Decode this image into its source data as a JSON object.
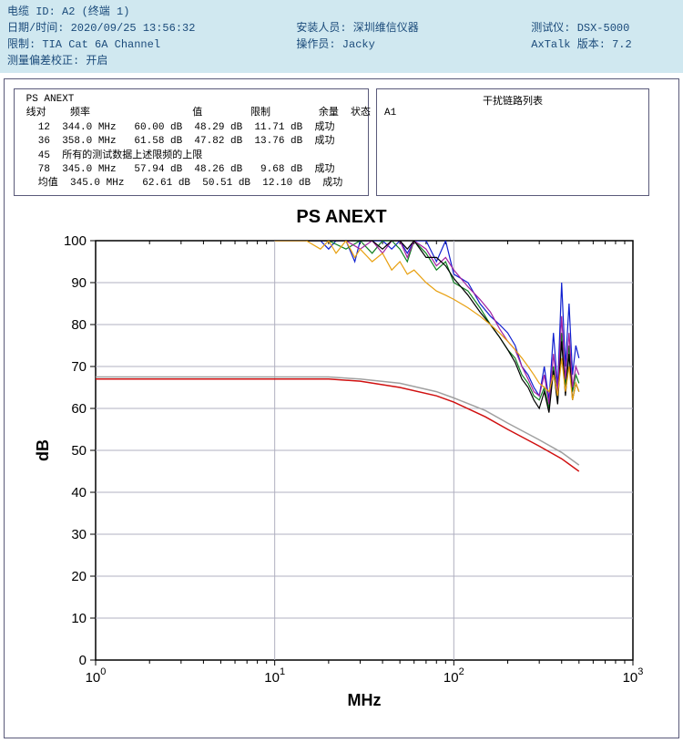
{
  "header": {
    "row1": {
      "a": "电缆 ID: A2 (终端 1)"
    },
    "row2": {
      "a": "日期/时间: 2020/09/25 13:56:32",
      "b": "安装人员: 深圳维信仪器",
      "c": "测试仪: DSX-5000"
    },
    "row3": {
      "a": "限制: TIA Cat 6A Channel",
      "b": "操作员: Jacky",
      "c": "AxTalk 版本: 7.2"
    },
    "row4": {
      "a": "测量偏差校正: 开启"
    }
  },
  "table": {
    "title": "PS ANEXT",
    "headers": [
      "线对",
      "频率",
      "值",
      "限制",
      "余量",
      "状态"
    ],
    "rows": [
      {
        "pair": "12",
        "freq": "344.0 MHz",
        "val": "60.00 dB",
        "lim": "48.29 dB",
        "margin": "11.71 dB",
        "status": "成功"
      },
      {
        "pair": "36",
        "freq": "358.0 MHz",
        "val": "61.58 dB",
        "lim": "47.82 dB",
        "margin": "13.76 dB",
        "status": "成功"
      },
      {
        "pair": "45",
        "freq": "所有的测试数据上述限频的上限",
        "val": "",
        "lim": "",
        "margin": "",
        "status": ""
      },
      {
        "pair": "78",
        "freq": "345.0 MHz",
        "val": "57.94 dB",
        "lim": "48.26 dB",
        "margin": " 9.68 dB",
        "status": "成功"
      },
      {
        "pair": "均值",
        "freq": "345.0 MHz",
        "val": "62.61 dB",
        "lim": "50.51 dB",
        "margin": "12.10 dB",
        "status": "成功"
      }
    ]
  },
  "side": {
    "title": "干扰链路列表",
    "item": "A1"
  },
  "chart": {
    "title": "PS ANEXT",
    "xlabel": "MHz",
    "ylabel": "dB",
    "x_log_min": 0,
    "x_log_max": 3,
    "y_min": 0,
    "y_max": 100,
    "y_tick_step": 10,
    "background": "#ffffff",
    "grid_color": "#b0b0c0",
    "limit_line": {
      "color": "#d01010",
      "width": 1.5,
      "points": [
        [
          1,
          67
        ],
        [
          10,
          67
        ],
        [
          20,
          67
        ],
        [
          30,
          66.5
        ],
        [
          50,
          65
        ],
        [
          80,
          63
        ],
        [
          100,
          61.5
        ],
        [
          150,
          58
        ],
        [
          200,
          55
        ],
        [
          300,
          51
        ],
        [
          400,
          48
        ],
        [
          500,
          45
        ]
      ]
    },
    "gray_line": {
      "color": "#a0a0a0",
      "width": 1.5,
      "points": [
        [
          1,
          67.5
        ],
        [
          10,
          67.5
        ],
        [
          20,
          67.5
        ],
        [
          30,
          67
        ],
        [
          50,
          66
        ],
        [
          80,
          64
        ],
        [
          100,
          62.5
        ],
        [
          150,
          59.5
        ],
        [
          200,
          56.5
        ],
        [
          300,
          52.5
        ],
        [
          400,
          49.5
        ],
        [
          500,
          46.5
        ]
      ]
    },
    "traces": [
      {
        "color": "#1020d0",
        "points": [
          [
            10,
            100
          ],
          [
            15,
            100
          ],
          [
            18,
            100
          ],
          [
            20,
            98
          ],
          [
            22,
            100
          ],
          [
            25,
            100
          ],
          [
            28,
            95
          ],
          [
            30,
            100
          ],
          [
            35,
            100
          ],
          [
            40,
            100
          ],
          [
            45,
            98
          ],
          [
            50,
            100
          ],
          [
            55,
            97
          ],
          [
            60,
            100
          ],
          [
            70,
            100
          ],
          [
            80,
            95
          ],
          [
            90,
            100
          ],
          [
            100,
            92
          ],
          [
            120,
            90
          ],
          [
            140,
            85
          ],
          [
            160,
            82
          ],
          [
            180,
            80
          ],
          [
            200,
            78
          ],
          [
            220,
            75
          ],
          [
            240,
            70
          ],
          [
            260,
            68
          ],
          [
            280,
            65
          ],
          [
            300,
            63
          ],
          [
            320,
            70
          ],
          [
            340,
            62
          ],
          [
            360,
            78
          ],
          [
            380,
            65
          ],
          [
            400,
            90
          ],
          [
            420,
            70
          ],
          [
            440,
            85
          ],
          [
            460,
            68
          ],
          [
            480,
            75
          ],
          [
            500,
            72
          ]
        ]
      },
      {
        "color": "#108020",
        "points": [
          [
            10,
            100
          ],
          [
            15,
            100
          ],
          [
            20,
            100
          ],
          [
            25,
            98
          ],
          [
            30,
            100
          ],
          [
            35,
            97
          ],
          [
            40,
            100
          ],
          [
            45,
            100
          ],
          [
            50,
            98
          ],
          [
            55,
            95
          ],
          [
            60,
            100
          ],
          [
            70,
            97
          ],
          [
            80,
            93
          ],
          [
            90,
            95
          ],
          [
            100,
            90
          ],
          [
            120,
            88
          ],
          [
            140,
            84
          ],
          [
            160,
            80
          ],
          [
            180,
            77
          ],
          [
            200,
            74
          ],
          [
            220,
            72
          ],
          [
            240,
            68
          ],
          [
            260,
            66
          ],
          [
            280,
            63
          ],
          [
            300,
            62
          ],
          [
            320,
            65
          ],
          [
            340,
            60
          ],
          [
            360,
            70
          ],
          [
            380,
            62
          ],
          [
            400,
            78
          ],
          [
            420,
            65
          ],
          [
            440,
            75
          ],
          [
            460,
            64
          ],
          [
            480,
            68
          ],
          [
            500,
            66
          ]
        ]
      },
      {
        "color": "#a020a0",
        "points": [
          [
            10,
            100
          ],
          [
            15,
            100
          ],
          [
            20,
            100
          ],
          [
            25,
            100
          ],
          [
            30,
            98
          ],
          [
            35,
            100
          ],
          [
            40,
            97
          ],
          [
            45,
            100
          ],
          [
            50,
            100
          ],
          [
            55,
            96
          ],
          [
            60,
            100
          ],
          [
            70,
            98
          ],
          [
            80,
            94
          ],
          [
            90,
            96
          ],
          [
            100,
            93
          ],
          [
            120,
            89
          ],
          [
            140,
            86
          ],
          [
            160,
            83
          ],
          [
            180,
            79
          ],
          [
            200,
            76
          ],
          [
            220,
            74
          ],
          [
            240,
            70
          ],
          [
            260,
            67
          ],
          [
            280,
            64
          ],
          [
            300,
            63
          ],
          [
            320,
            68
          ],
          [
            340,
            61
          ],
          [
            360,
            73
          ],
          [
            380,
            64
          ],
          [
            400,
            82
          ],
          [
            420,
            67
          ],
          [
            440,
            78
          ],
          [
            460,
            65
          ],
          [
            480,
            70
          ],
          [
            500,
            68
          ]
        ]
      },
      {
        "color": "#000000",
        "points": [
          [
            10,
            100
          ],
          [
            15,
            100
          ],
          [
            20,
            100
          ],
          [
            25,
            100
          ],
          [
            30,
            100
          ],
          [
            35,
            100
          ],
          [
            40,
            98
          ],
          [
            45,
            100
          ],
          [
            50,
            100
          ],
          [
            55,
            98
          ],
          [
            60,
            100
          ],
          [
            70,
            96
          ],
          [
            80,
            96
          ],
          [
            90,
            94
          ],
          [
            100,
            91
          ],
          [
            120,
            87
          ],
          [
            140,
            83
          ],
          [
            160,
            80
          ],
          [
            180,
            77
          ],
          [
            200,
            74
          ],
          [
            220,
            71
          ],
          [
            240,
            67
          ],
          [
            260,
            65
          ],
          [
            280,
            62
          ],
          [
            300,
            60
          ],
          [
            320,
            64
          ],
          [
            340,
            59
          ],
          [
            360,
            69
          ],
          [
            380,
            61
          ],
          [
            400,
            76
          ],
          [
            420,
            63
          ],
          [
            440,
            73
          ],
          [
            460,
            62
          ],
          [
            480,
            66
          ],
          [
            500,
            64
          ]
        ]
      },
      {
        "color": "#e8a010",
        "points": [
          [
            10,
            100
          ],
          [
            15,
            100
          ],
          [
            18,
            98
          ],
          [
            20,
            100
          ],
          [
            22,
            97
          ],
          [
            25,
            100
          ],
          [
            28,
            96
          ],
          [
            30,
            98
          ],
          [
            35,
            95
          ],
          [
            40,
            97
          ],
          [
            45,
            93
          ],
          [
            50,
            95
          ],
          [
            55,
            92
          ],
          [
            60,
            93
          ],
          [
            70,
            90
          ],
          [
            80,
            88
          ],
          [
            90,
            87
          ],
          [
            100,
            86
          ],
          [
            120,
            84
          ],
          [
            140,
            82
          ],
          [
            160,
            80
          ],
          [
            180,
            78
          ],
          [
            200,
            76
          ],
          [
            220,
            74
          ],
          [
            240,
            72
          ],
          [
            260,
            70
          ],
          [
            280,
            68
          ],
          [
            300,
            66
          ],
          [
            320,
            65
          ],
          [
            340,
            64
          ],
          [
            360,
            68
          ],
          [
            380,
            63
          ],
          [
            400,
            72
          ],
          [
            420,
            64
          ],
          [
            440,
            70
          ],
          [
            460,
            62
          ],
          [
            480,
            66
          ],
          [
            500,
            64
          ]
        ]
      }
    ]
  }
}
